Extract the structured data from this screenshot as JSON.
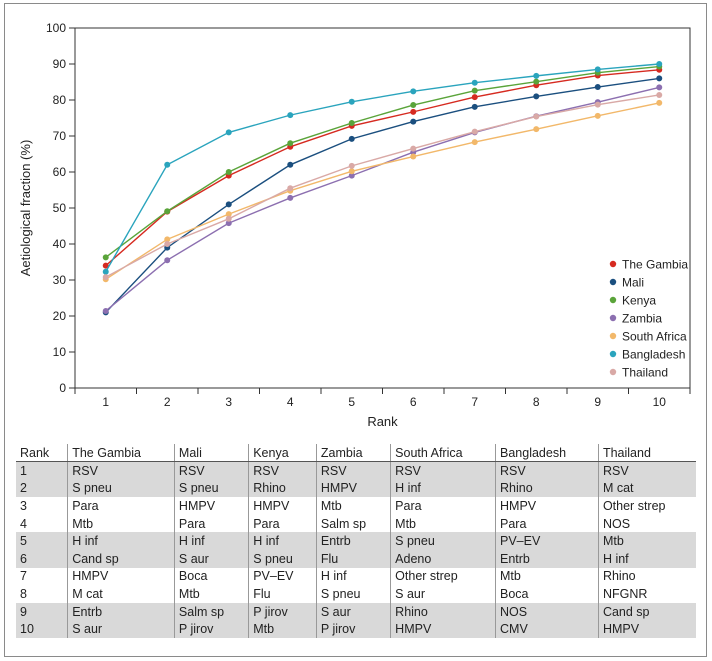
{
  "chart_data": {
    "type": "line",
    "xlabel": "Rank",
    "ylabel": "Aetiological fraction (%)",
    "x": [
      1,
      2,
      3,
      4,
      5,
      6,
      7,
      8,
      9,
      10
    ],
    "xlim": [
      0.5,
      10.5
    ],
    "ylim": [
      0,
      100
    ],
    "yticks": [
      0,
      10,
      20,
      30,
      40,
      50,
      60,
      70,
      80,
      90,
      100
    ],
    "legend_position": "right",
    "series": [
      {
        "name": "The Gambia",
        "color": "#d62a20",
        "values": [
          34.0,
          49.0,
          59.0,
          67.0,
          72.8,
          76.7,
          80.8,
          84.1,
          86.8,
          88.4
        ]
      },
      {
        "name": "Mali",
        "color": "#1b4f7f",
        "values": [
          21.0,
          39.0,
          51.0,
          62.0,
          69.2,
          74.0,
          78.1,
          81.0,
          83.6,
          86.0
        ]
      },
      {
        "name": "Kenya",
        "color": "#5aa43a",
        "values": [
          36.3,
          49.1,
          60.0,
          68.0,
          73.6,
          78.6,
          82.6,
          85.1,
          87.6,
          89.3
        ]
      },
      {
        "name": "Zambia",
        "color": "#8c6fb0",
        "values": [
          21.4,
          35.5,
          45.8,
          52.8,
          59.0,
          65.5,
          71.0,
          75.5,
          79.4,
          83.5
        ]
      },
      {
        "name": "South Africa",
        "color": "#f2b86a",
        "values": [
          30.2,
          41.3,
          48.3,
          54.8,
          60.2,
          64.3,
          68.3,
          71.9,
          75.6,
          79.2
        ]
      },
      {
        "name": "Bangladesh",
        "color": "#2aa4bd",
        "values": [
          32.3,
          62.0,
          71.0,
          75.8,
          79.5,
          82.4,
          84.8,
          86.7,
          88.5,
          90.0
        ]
      },
      {
        "name": "Thailand",
        "color": "#d9a9a6",
        "values": [
          30.8,
          40.0,
          47.0,
          55.5,
          61.7,
          66.5,
          71.2,
          75.4,
          78.7,
          81.4
        ]
      }
    ]
  },
  "table": {
    "headers": [
      "Rank",
      "The Gambia",
      "Mali",
      "Kenya",
      "Zambia",
      "South Africa",
      "Bangladesh",
      "Thailand"
    ],
    "rows": [
      [
        "1",
        "RSV",
        "RSV",
        "RSV",
        "RSV",
        "RSV",
        "RSV",
        "RSV"
      ],
      [
        "2",
        "S pneu",
        "S pneu",
        "Rhino",
        "HMPV",
        "H inf",
        "Rhino",
        "M cat"
      ],
      [
        "3",
        "Para",
        "HMPV",
        "HMPV",
        "Mtb",
        "Para",
        "HMPV",
        "Other strep"
      ],
      [
        "4",
        "Mtb",
        "Para",
        "Para",
        "Salm sp",
        "Mtb",
        "Para",
        "NOS"
      ],
      [
        "5",
        "H inf",
        "H inf",
        "H inf",
        "Entrb",
        "S pneu",
        "PV–EV",
        "Mtb"
      ],
      [
        "6",
        "Cand sp",
        "S aur",
        "S pneu",
        "Flu",
        "Adeno",
        "Entrb",
        "H inf"
      ],
      [
        "7",
        "HMPV",
        "Boca",
        "PV–EV",
        "H inf",
        "Other strep",
        "Mtb",
        "Rhino"
      ],
      [
        "8",
        "M cat",
        "Mtb",
        "Flu",
        "S pneu",
        "S aur",
        "Boca",
        "NFGNR"
      ],
      [
        "9",
        "Entrb",
        "Salm sp",
        "P jirov",
        "S aur",
        "Rhino",
        "NOS",
        "Cand sp"
      ],
      [
        "10",
        "S aur",
        "P jirov",
        "Mtb",
        "P jirov",
        "HMPV",
        "CMV",
        "HMPV"
      ]
    ]
  }
}
